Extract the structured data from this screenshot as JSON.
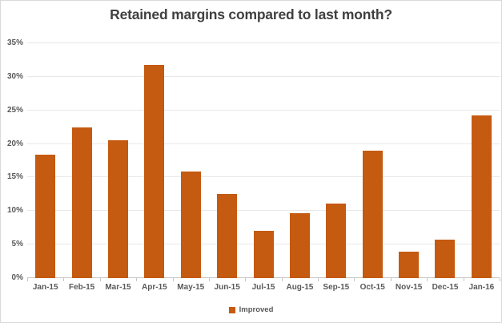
{
  "chart": {
    "title": "Retained margins compared to last month?",
    "legend": {
      "label": "Improved",
      "marker_color": "#c55a11"
    }
  },
  "chart_data": {
    "type": "bar",
    "title": "Retained margins compared to last month?",
    "categories": [
      "Jan-15",
      "Feb-15",
      "Mar-15",
      "Apr-15",
      "May-15",
      "Jun-15",
      "Jul-15",
      "Aug-15",
      "Sep-15",
      "Oct-15",
      "Nov-15",
      "Dec-15",
      "Jan-16"
    ],
    "series": [
      {
        "name": "Improved",
        "values": [
          18.4,
          22.5,
          20.5,
          31.8,
          15.9,
          12.5,
          7.0,
          9.7,
          11.1,
          19.0,
          4.0,
          5.7,
          24.3
        ]
      }
    ],
    "xlabel": "",
    "ylabel": "",
    "ylim": [
      0,
      35
    ],
    "yticks": [
      0,
      5,
      10,
      15,
      20,
      25,
      30,
      35
    ],
    "ytick_format": "percent",
    "grid": true,
    "legend_position": "bottom",
    "bar_color": "#c55a11",
    "colors": {
      "title_text": "#404040",
      "tick_text": "#595959",
      "gridline": "#e8e8e8",
      "axis_line": "#c6c6c6",
      "background": "#ffffff",
      "border": "#d9d9d9"
    }
  }
}
